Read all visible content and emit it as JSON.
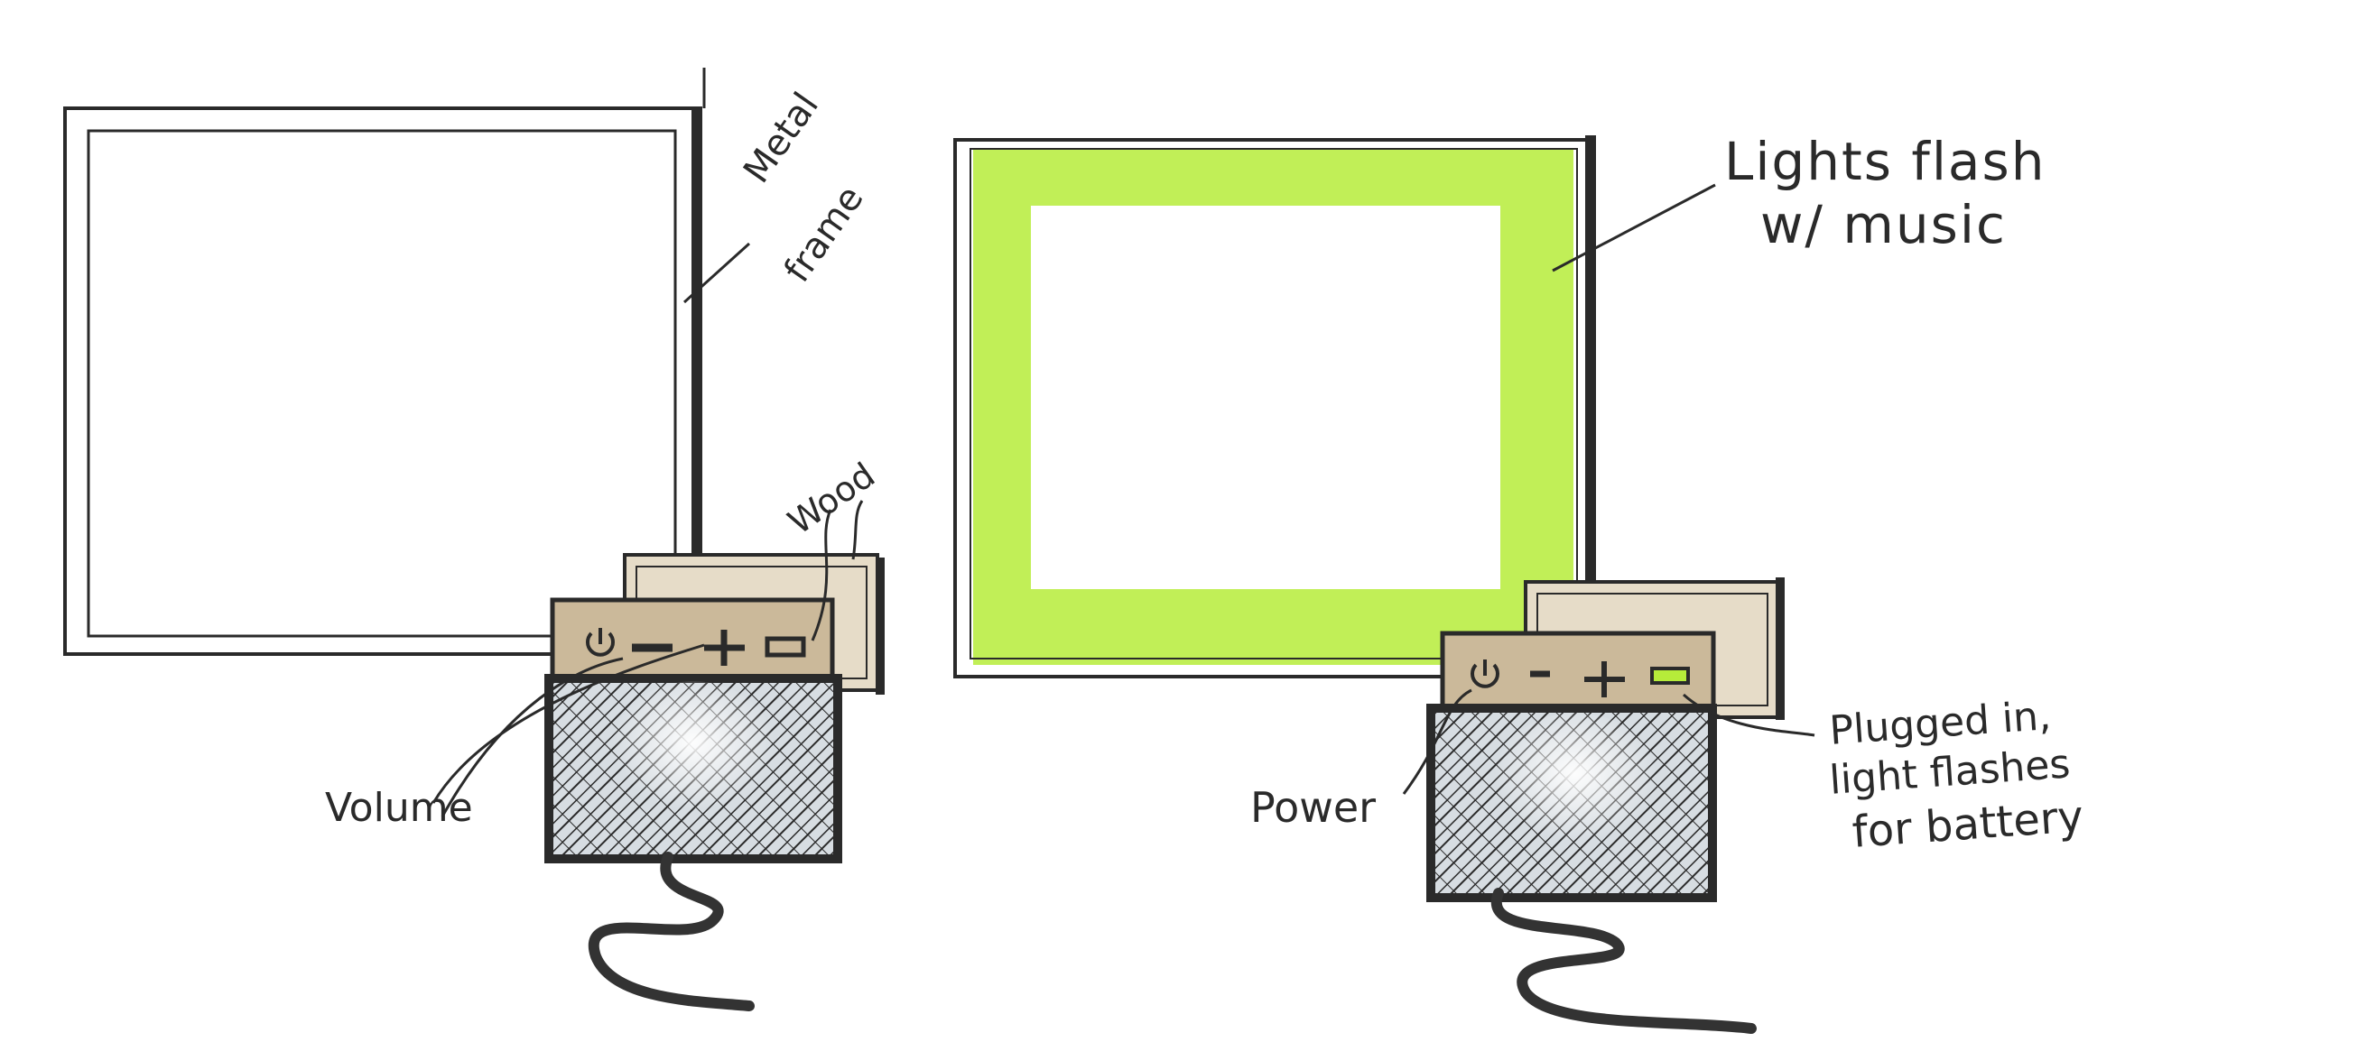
{
  "sketch_left": {
    "labels": {
      "frame": [
        "Metal",
        "frame"
      ],
      "wood": "Wood",
      "volume": "Volume"
    },
    "buttons": [
      "power-icon",
      "minus-icon",
      "plus-icon",
      "battery-icon"
    ]
  },
  "sketch_right": {
    "labels": {
      "lights": [
        "Lights flash",
        "w/ music"
      ],
      "power": "Power",
      "plugged": [
        "Plugged in,",
        "light flashes",
        "for battery"
      ]
    },
    "buttons": [
      "power-icon",
      "minus-icon",
      "plus-icon",
      "battery-icon"
    ]
  },
  "colors": {
    "ink": "#2a2a2a",
    "wood": "#cbb99a",
    "light_glow": "#b6ec3a",
    "speaker_grey": "#c9d0d6"
  }
}
